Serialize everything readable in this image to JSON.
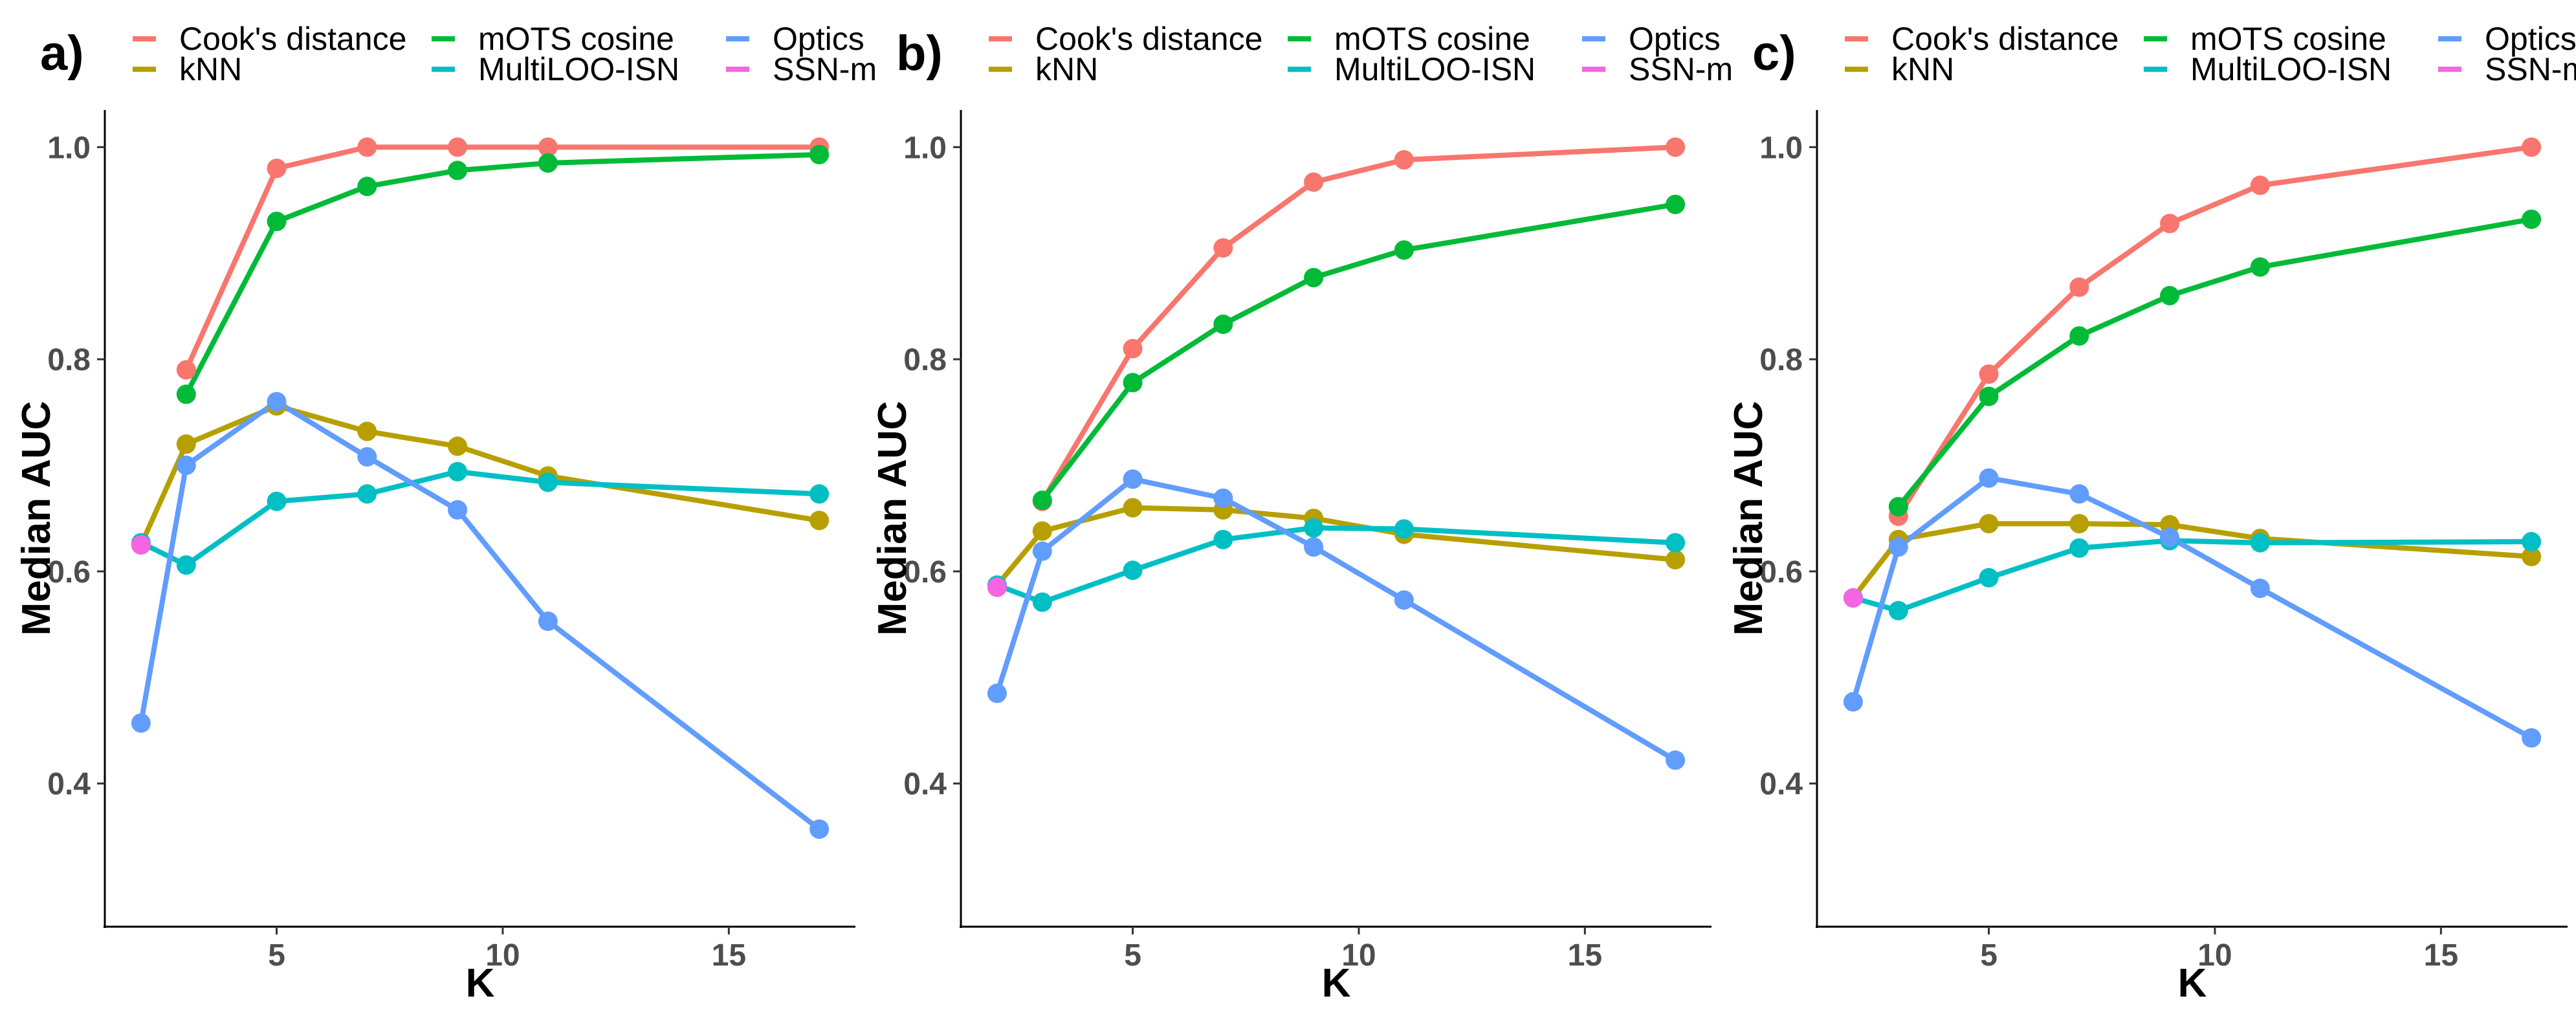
{
  "legend": [
    {
      "name": "Cook's distance",
      "color": "#F8766D"
    },
    {
      "name": "kNN",
      "color": "#B79F00"
    },
    {
      "name": "mOTS cosine",
      "color": "#00BA38"
    },
    {
      "name": "MultiLOO-ISN",
      "color": "#00BFC4"
    },
    {
      "name": "Optics",
      "color": "#619CFF"
    },
    {
      "name": "SSN-m",
      "color": "#F564E3"
    }
  ],
  "chart_data": [
    {
      "type": "line",
      "panel_label": "a)",
      "xlabel": "K",
      "ylabel": "Median AUC",
      "xlim": [
        1.2,
        17.8
      ],
      "ylim": [
        0.265,
        1.035
      ],
      "xticks": [
        5,
        10,
        15
      ],
      "xtick_labels": [
        "5",
        "10",
        "15"
      ],
      "yticks": [
        0.4,
        0.6,
        0.8,
        1.0
      ],
      "ytick_labels": [
        "0.4",
        "0.6",
        "0.8",
        "1.0"
      ],
      "grid": false,
      "legend_position": "top",
      "series": [
        {
          "name": "Cook's distance",
          "x": [
            3,
            5,
            7,
            9,
            11,
            17
          ],
          "y": [
            0.79,
            0.98,
            1.0,
            1.0,
            1.0,
            1.0
          ]
        },
        {
          "name": "kNN",
          "x": [
            2,
            3,
            5,
            7,
            9,
            11,
            17
          ],
          "y": [
            0.625,
            0.72,
            0.756,
            0.732,
            0.718,
            0.69,
            0.648
          ]
        },
        {
          "name": "mOTS cosine",
          "x": [
            3,
            5,
            7,
            9,
            11,
            17
          ],
          "y": [
            0.767,
            0.93,
            0.963,
            0.978,
            0.985,
            0.993
          ]
        },
        {
          "name": "MultiLOO-ISN",
          "x": [
            2,
            3,
            5,
            7,
            9,
            11,
            17
          ],
          "y": [
            0.627,
            0.606,
            0.666,
            0.673,
            0.694,
            0.684,
            0.673
          ]
        },
        {
          "name": "Optics",
          "x": [
            2,
            3,
            5,
            7,
            9,
            11,
            17
          ],
          "y": [
            0.457,
            0.7,
            0.76,
            0.708,
            0.658,
            0.553,
            0.357
          ]
        },
        {
          "name": "SSN-m",
          "x": [
            2
          ],
          "y": [
            0.625
          ]
        }
      ]
    },
    {
      "type": "line",
      "panel_label": "b)",
      "xlabel": "K",
      "ylabel": "Median AUC",
      "xlim": [
        1.2,
        17.8
      ],
      "ylim": [
        0.265,
        1.035
      ],
      "xticks": [
        5,
        10,
        15
      ],
      "xtick_labels": [
        "5",
        "10",
        "15"
      ],
      "yticks": [
        0.4,
        0.6,
        0.8,
        1.0
      ],
      "ytick_labels": [
        "0.4",
        "0.6",
        "0.8",
        "1.0"
      ],
      "grid": false,
      "legend_position": "top",
      "series": [
        {
          "name": "Cook's distance",
          "x": [
            3,
            5,
            7,
            9,
            11,
            17
          ],
          "y": [
            0.666,
            0.81,
            0.905,
            0.967,
            0.988,
            1.0
          ]
        },
        {
          "name": "kNN",
          "x": [
            2,
            3,
            5,
            7,
            9,
            11,
            17
          ],
          "y": [
            0.587,
            0.638,
            0.66,
            0.658,
            0.65,
            0.635,
            0.611
          ]
        },
        {
          "name": "mOTS cosine",
          "x": [
            3,
            5,
            7,
            9,
            11,
            17
          ],
          "y": [
            0.667,
            0.778,
            0.833,
            0.877,
            0.903,
            0.946
          ]
        },
        {
          "name": "MultiLOO-ISN",
          "x": [
            2,
            3,
            5,
            7,
            9,
            11,
            17
          ],
          "y": [
            0.587,
            0.571,
            0.601,
            0.63,
            0.641,
            0.64,
            0.627
          ]
        },
        {
          "name": "Optics",
          "x": [
            2,
            3,
            5,
            7,
            9,
            11,
            17
          ],
          "y": [
            0.485,
            0.619,
            0.687,
            0.669,
            0.623,
            0.573,
            0.422
          ]
        },
        {
          "name": "SSN-m",
          "x": [
            2
          ],
          "y": [
            0.585
          ]
        }
      ]
    },
    {
      "type": "line",
      "panel_label": "c)",
      "xlabel": "K",
      "ylabel": "Median AUC",
      "xlim": [
        1.2,
        17.8
      ],
      "ylim": [
        0.265,
        1.035
      ],
      "xticks": [
        5,
        10,
        15
      ],
      "xtick_labels": [
        "5",
        "10",
        "15"
      ],
      "yticks": [
        0.4,
        0.6,
        0.8,
        1.0
      ],
      "ytick_labels": [
        "0.4",
        "0.6",
        "0.8",
        "1.0"
      ],
      "grid": false,
      "legend_position": "top",
      "series": [
        {
          "name": "Cook's distance",
          "x": [
            3,
            5,
            7,
            9,
            11,
            17
          ],
          "y": [
            0.652,
            0.786,
            0.868,
            0.928,
            0.964,
            1.0
          ]
        },
        {
          "name": "kNN",
          "x": [
            2,
            3,
            5,
            7,
            9,
            11,
            17
          ],
          "y": [
            0.575,
            0.63,
            0.645,
            0.645,
            0.644,
            0.631,
            0.614
          ]
        },
        {
          "name": "mOTS cosine",
          "x": [
            3,
            5,
            7,
            9,
            11,
            17
          ],
          "y": [
            0.661,
            0.765,
            0.822,
            0.86,
            0.887,
            0.932
          ]
        },
        {
          "name": "MultiLOO-ISN",
          "x": [
            2,
            3,
            5,
            7,
            9,
            11,
            17
          ],
          "y": [
            0.575,
            0.563,
            0.594,
            0.622,
            0.629,
            0.627,
            0.628
          ]
        },
        {
          "name": "Optics",
          "x": [
            2,
            3,
            5,
            7,
            9,
            11,
            17
          ],
          "y": [
            0.477,
            0.623,
            0.688,
            0.673,
            0.632,
            0.584,
            0.443
          ]
        },
        {
          "name": "SSN-m",
          "x": [
            2
          ],
          "y": [
            0.575
          ]
        }
      ]
    }
  ]
}
